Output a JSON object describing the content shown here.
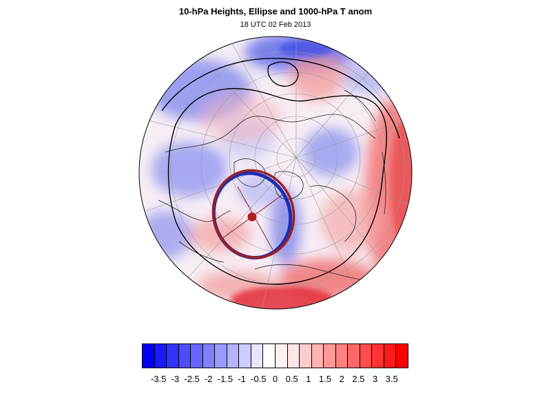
{
  "header": {
    "title": "10-hPa Heights, Ellipse and 1000-hPa T anom",
    "subtitle": "18 UTC 02 Feb 2013"
  },
  "map": {
    "projection": "north-polar orthographic",
    "vortex_ellipse_colors": [
      "#1a2db5",
      "#9e1f1f"
    ],
    "vortex_center_color": "#b01e1e",
    "contour_color": "#000000"
  },
  "colorbar": {
    "swatches": [
      "#0000ff",
      "#1a1aff",
      "#3333ff",
      "#4d4dff",
      "#6666ff",
      "#8080ff",
      "#9999ff",
      "#b3b3ff",
      "#ccccff",
      "#e6e6ff",
      "#ffffff",
      "#fff0f0",
      "#ffe6e6",
      "#ffcccc",
      "#ffb3b3",
      "#ff9999",
      "#ff8080",
      "#ff6666",
      "#ff4d4d",
      "#ff3333",
      "#ff1a1a",
      "#ff0000"
    ],
    "labels": [
      "-3.5",
      "-3",
      "-2.5",
      "-2",
      "-1.5",
      "-1",
      "-0.5",
      "0",
      "0.5",
      "1",
      "1.5",
      "2",
      "2.5",
      "3",
      "3.5"
    ]
  }
}
